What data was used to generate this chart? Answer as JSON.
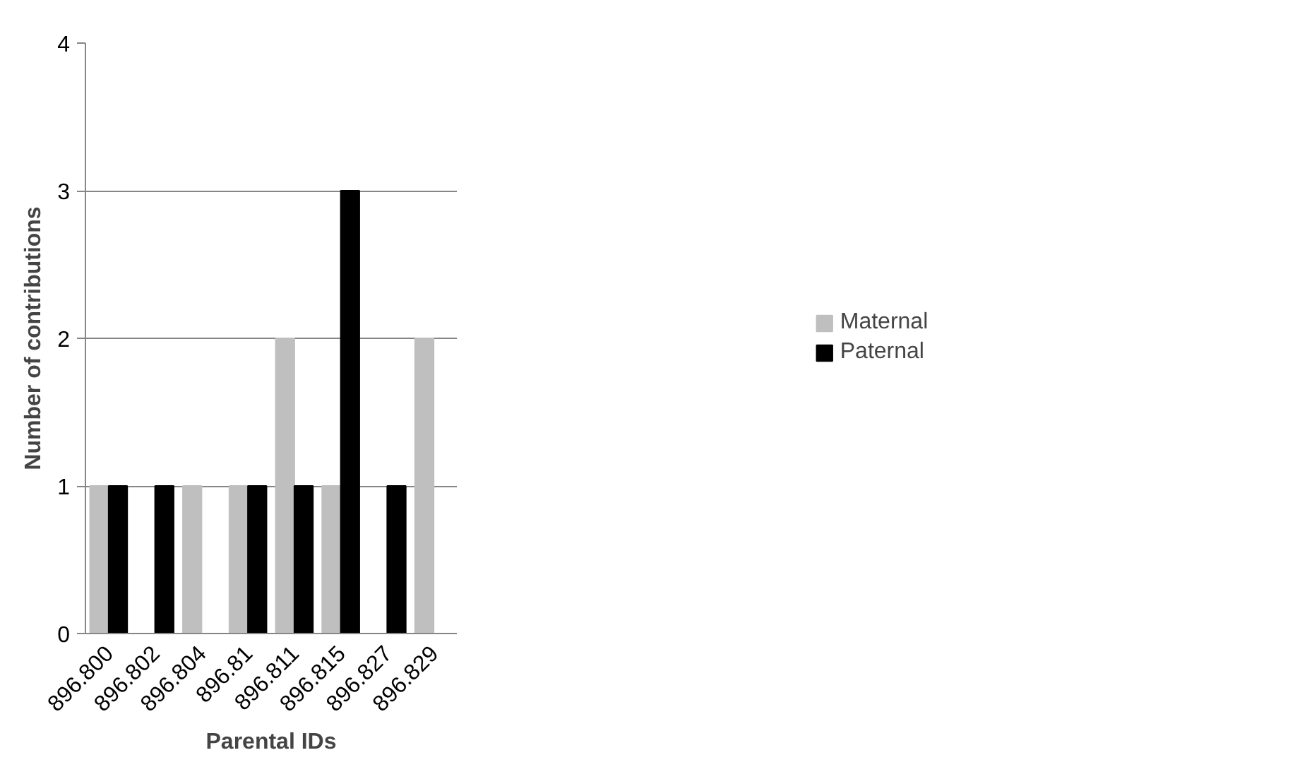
{
  "chart_data": {
    "type": "bar",
    "xlabel": "Parental IDs",
    "ylabel": "Number of contributions",
    "categories": [
      "896.800",
      "896.802",
      "896.804",
      "896.81",
      "896.811",
      "896.815",
      "896.827",
      "896.829"
    ],
    "series": [
      {
        "name": "Maternal",
        "color": "#bfbfbf",
        "values": [
          1,
          0,
          1,
          1,
          2,
          1,
          0,
          2
        ]
      },
      {
        "name": "Paternal",
        "color": "#000000",
        "values": [
          1,
          1,
          0,
          1,
          1,
          3,
          1,
          0
        ]
      }
    ],
    "ylim": [
      0,
      4
    ],
    "yticks": [
      0,
      1,
      2,
      3,
      4
    ],
    "grid": "y",
    "legend": "right"
  }
}
